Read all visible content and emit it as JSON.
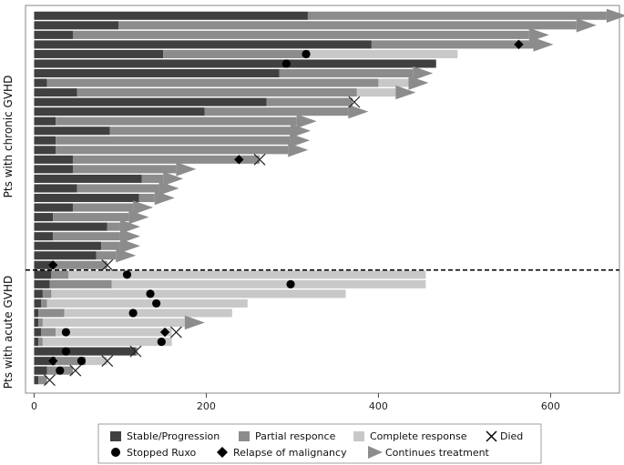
{
  "chart_data": {
    "type": "bar",
    "orientation": "horizontal-swimmer",
    "xlim": [
      -10,
      680
    ],
    "x_ticks": [
      0,
      200,
      400,
      600
    ],
    "x_tick_labels": [
      "0",
      "200",
      "400",
      "600"
    ],
    "groups": [
      {
        "label": "Pts with chronic GVHD"
      },
      {
        "label": "Pts with acute GVHD"
      }
    ],
    "colors": {
      "stable": "#404040",
      "partial": "#8c8c8c",
      "complete": "#c8c8c8",
      "arrow": "#8c8c8c",
      "marker": "#000000"
    },
    "legend": {
      "stable": "Stable/Progression",
      "partial": "Partial responce",
      "complete": "Complete response",
      "died": "Died",
      "stopped": "Stopped Ruxo",
      "relapse": "Relapse of malignancy",
      "continues": "Continues treatment"
    },
    "patients": [
      {
        "group": 0,
        "segments": [
          [
            "stable",
            0,
            318
          ],
          [
            "partial",
            318,
            665
          ]
        ],
        "arrow": true
      },
      {
        "group": 0,
        "segments": [
          [
            "stable",
            0,
            98
          ],
          [
            "partial",
            98,
            630
          ]
        ],
        "arrow": true
      },
      {
        "group": 0,
        "segments": [
          [
            "stable",
            0,
            45
          ],
          [
            "partial",
            45,
            575
          ]
        ],
        "arrow": true
      },
      {
        "group": 0,
        "segments": [
          [
            "stable",
            0,
            392
          ],
          [
            "partial",
            392,
            580
          ]
        ],
        "arrow": true,
        "relapse": 563
      },
      {
        "group": 0,
        "segments": [
          [
            "stable",
            0,
            150
          ],
          [
            "partial",
            150,
            320
          ],
          [
            "complete",
            320,
            492
          ]
        ],
        "stopped": 316
      },
      {
        "group": 0,
        "segments": [
          [
            "stable",
            0,
            467
          ]
        ],
        "stopped": 293
      },
      {
        "group": 0,
        "segments": [
          [
            "stable",
            0,
            285
          ],
          [
            "partial",
            285,
            440
          ]
        ],
        "arrow": true
      },
      {
        "group": 0,
        "segments": [
          [
            "stable",
            0,
            15
          ],
          [
            "partial",
            15,
            400
          ],
          [
            "complete",
            400,
            435
          ]
        ],
        "arrow": true
      },
      {
        "group": 0,
        "segments": [
          [
            "stable",
            0,
            50
          ],
          [
            "partial",
            50,
            375
          ],
          [
            "complete",
            375,
            420
          ]
        ],
        "arrow": true
      },
      {
        "group": 0,
        "segments": [
          [
            "stable",
            0,
            270
          ],
          [
            "partial",
            270,
            370
          ]
        ],
        "died": 372
      },
      {
        "group": 0,
        "segments": [
          [
            "stable",
            0,
            198
          ],
          [
            "partial",
            198,
            365
          ]
        ],
        "arrow": true
      },
      {
        "group": 0,
        "segments": [
          [
            "stable",
            0,
            25
          ],
          [
            "partial",
            25,
            305
          ]
        ],
        "arrow": true
      },
      {
        "group": 0,
        "segments": [
          [
            "stable",
            0,
            88
          ],
          [
            "partial",
            88,
            298
          ]
        ],
        "arrow": true
      },
      {
        "group": 0,
        "segments": [
          [
            "stable",
            0,
            25
          ],
          [
            "partial",
            25,
            297
          ]
        ],
        "arrow": true
      },
      {
        "group": 0,
        "segments": [
          [
            "stable",
            0,
            25
          ],
          [
            "partial",
            25,
            295
          ]
        ],
        "arrow": true
      },
      {
        "group": 0,
        "segments": [
          [
            "stable",
            0,
            45
          ],
          [
            "partial",
            45,
            262
          ]
        ],
        "relapse": 238,
        "died": 262
      },
      {
        "group": 0,
        "segments": [
          [
            "stable",
            0,
            45
          ],
          [
            "partial",
            45,
            165
          ]
        ],
        "arrow": true
      },
      {
        "group": 0,
        "segments": [
          [
            "stable",
            0,
            125
          ],
          [
            "partial",
            125,
            150
          ]
        ],
        "arrow": true
      },
      {
        "group": 0,
        "segments": [
          [
            "stable",
            0,
            50
          ],
          [
            "partial",
            50,
            145
          ]
        ],
        "arrow": true
      },
      {
        "group": 0,
        "segments": [
          [
            "stable",
            0,
            122
          ],
          [
            "partial",
            122,
            140
          ]
        ],
        "arrow": true
      },
      {
        "group": 0,
        "segments": [
          [
            "stable",
            0,
            45
          ],
          [
            "partial",
            45,
            115
          ]
        ],
        "arrow": true
      },
      {
        "group": 0,
        "segments": [
          [
            "stable",
            0,
            22
          ],
          [
            "partial",
            22,
            110
          ]
        ],
        "arrow": true
      },
      {
        "group": 0,
        "segments": [
          [
            "stable",
            0,
            85
          ],
          [
            "partial",
            85,
            100
          ]
        ],
        "arrow": true
      },
      {
        "group": 0,
        "segments": [
          [
            "stable",
            0,
            22
          ],
          [
            "partial",
            22,
            100
          ]
        ],
        "arrow": true
      },
      {
        "group": 0,
        "segments": [
          [
            "stable",
            0,
            78
          ],
          [
            "partial",
            78,
            100
          ]
        ],
        "arrow": true
      },
      {
        "group": 0,
        "segments": [
          [
            "stable",
            0,
            72
          ],
          [
            "partial",
            72,
            95
          ]
        ],
        "arrow": true
      },
      {
        "group": 0,
        "segments": [
          [
            "stable",
            0,
            22
          ],
          [
            "partial",
            22,
            85
          ]
        ],
        "relapse": 22,
        "died": 85
      },
      {
        "group": 1,
        "segments": [
          [
            "stable",
            0,
            20
          ],
          [
            "partial",
            20,
            40
          ],
          [
            "complete",
            40,
            455
          ]
        ],
        "stopped": 108
      },
      {
        "group": 1,
        "segments": [
          [
            "stable",
            0,
            18
          ],
          [
            "partial",
            18,
            90
          ],
          [
            "complete",
            90,
            455
          ]
        ],
        "stopped": 298
      },
      {
        "group": 1,
        "segments": [
          [
            "stable",
            0,
            10
          ],
          [
            "partial",
            10,
            20
          ],
          [
            "complete",
            20,
            362
          ]
        ],
        "stopped": 135
      },
      {
        "group": 1,
        "segments": [
          [
            "stable",
            0,
            8
          ],
          [
            "partial",
            8,
            15
          ],
          [
            "complete",
            15,
            248
          ]
        ],
        "stopped": 142
      },
      {
        "group": 1,
        "segments": [
          [
            "stable",
            0,
            5
          ],
          [
            "partial",
            5,
            35
          ],
          [
            "complete",
            35,
            230
          ]
        ],
        "stopped": 115
      },
      {
        "group": 1,
        "segments": [
          [
            "stable",
            0,
            5
          ],
          [
            "partial",
            5,
            10
          ],
          [
            "complete",
            10,
            175
          ]
        ],
        "arrow": true
      },
      {
        "group": 1,
        "segments": [
          [
            "stable",
            0,
            8
          ],
          [
            "partial",
            8,
            25
          ],
          [
            "complete",
            25,
            160
          ]
        ],
        "stopped": 37,
        "relapse": 152,
        "died": 165
      },
      {
        "group": 1,
        "segments": [
          [
            "stable",
            0,
            5
          ],
          [
            "partial",
            5,
            10
          ],
          [
            "complete",
            10,
            160
          ]
        ],
        "stopped": 148
      },
      {
        "group": 1,
        "segments": [
          [
            "stable",
            0,
            118
          ],
          [
            "partial",
            118,
            120
          ]
        ],
        "stopped": 37,
        "died": 118
      },
      {
        "group": 1,
        "segments": [
          [
            "stable",
            0,
            25
          ],
          [
            "partial",
            25,
            60
          ],
          [
            "complete",
            60,
            85
          ]
        ],
        "stopped": 55,
        "relapse": 22,
        "died": 85
      },
      {
        "group": 1,
        "segments": [
          [
            "stable",
            0,
            15
          ],
          [
            "partial",
            15,
            45
          ]
        ],
        "stopped": 30,
        "died": 48
      },
      {
        "group": 1,
        "segments": [
          [
            "stable",
            0,
            5
          ],
          [
            "partial",
            5,
            15
          ]
        ],
        "died": 18
      }
    ]
  }
}
